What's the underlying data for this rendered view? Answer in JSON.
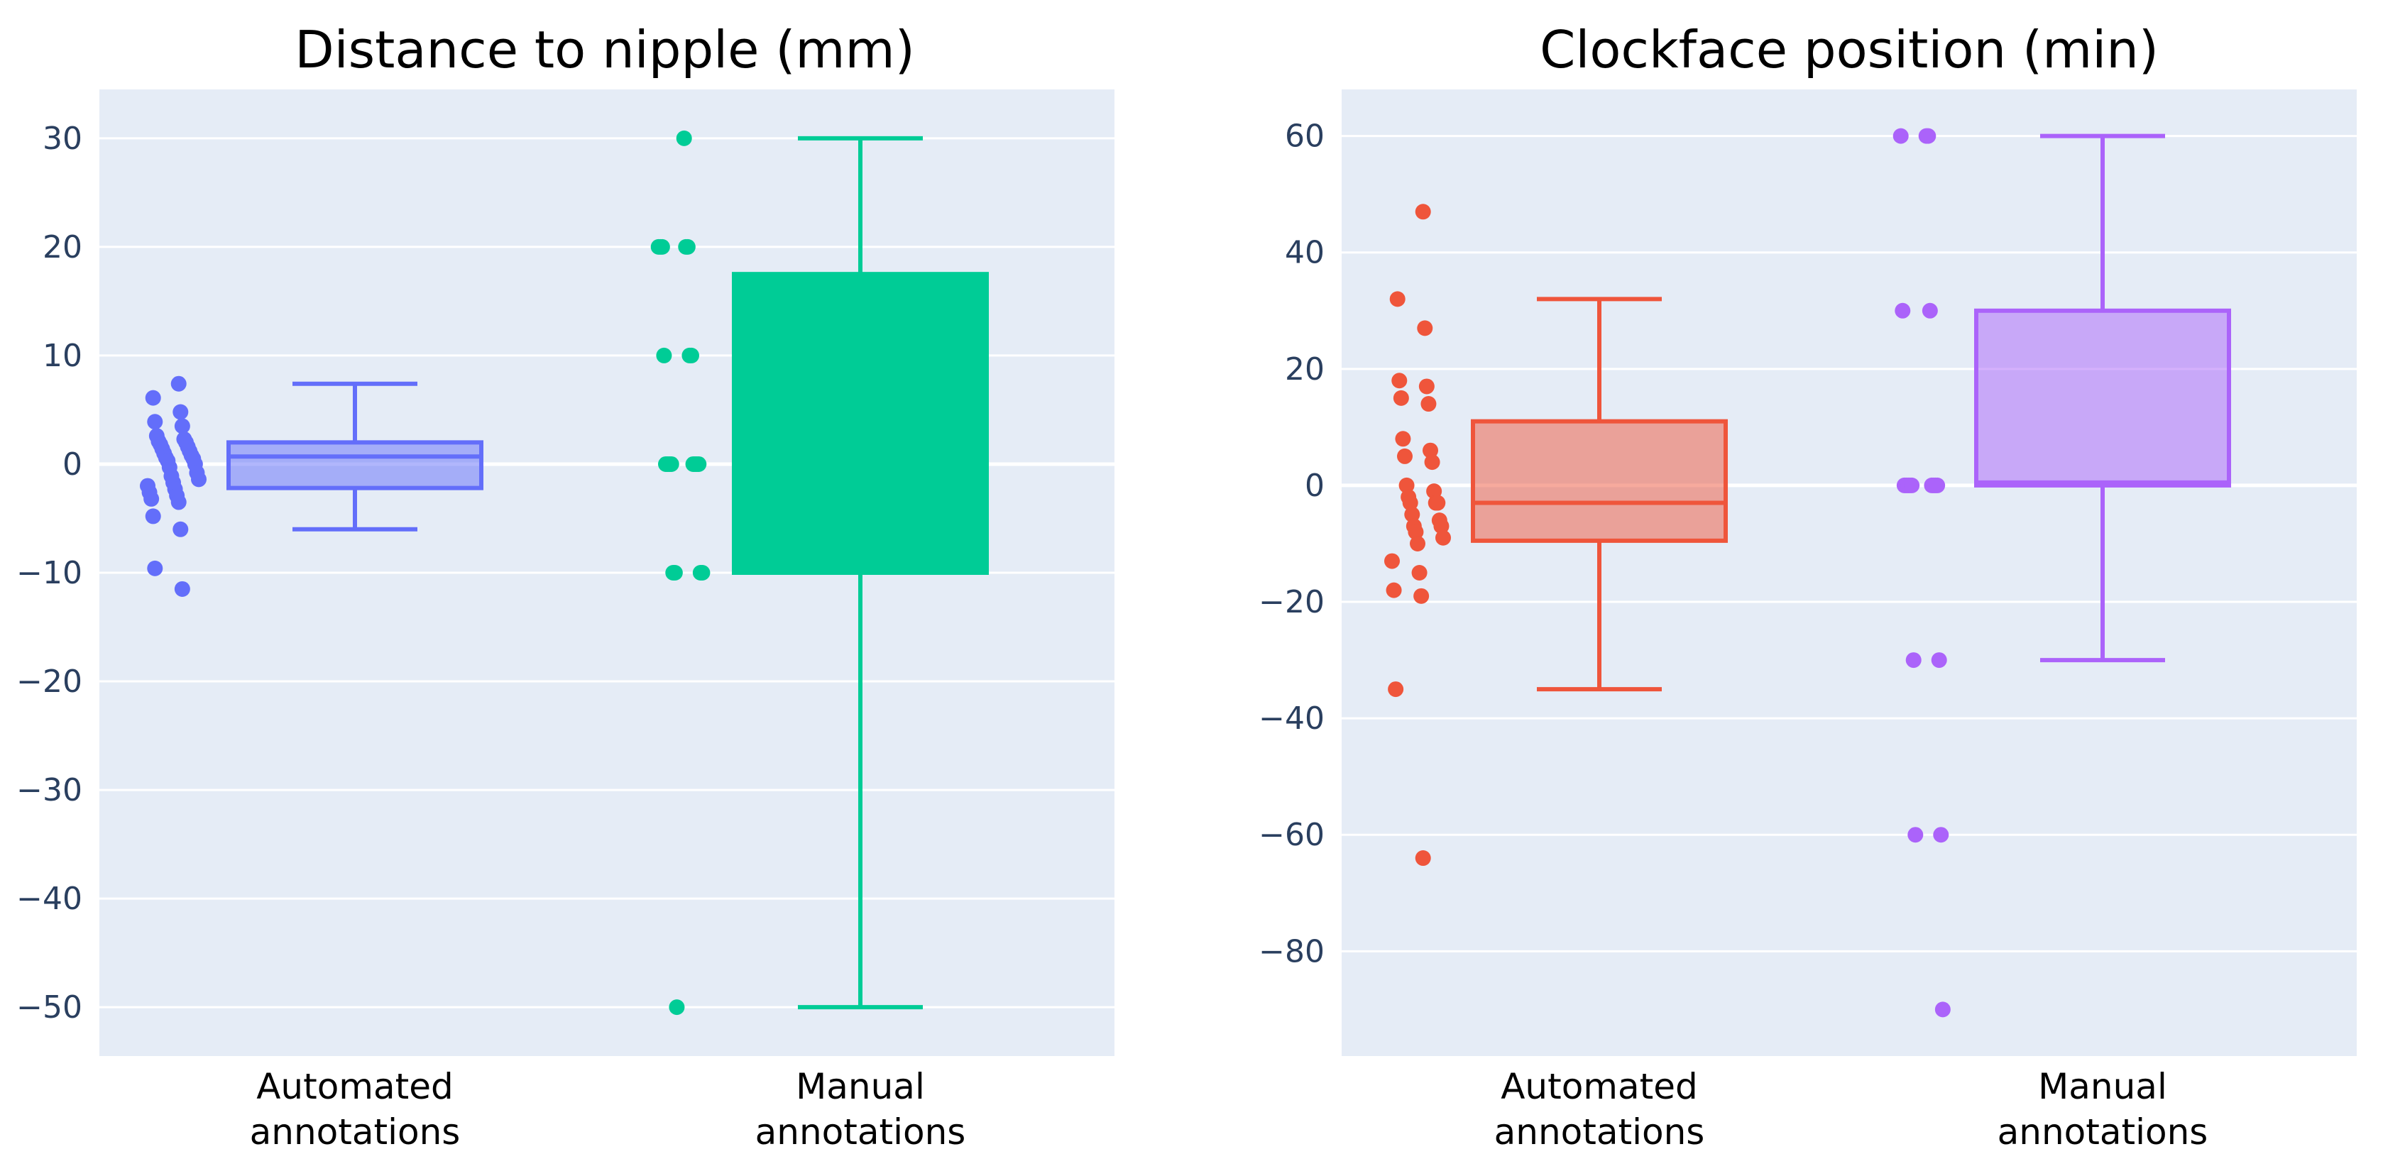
{
  "chart_data": [
    {
      "type": "box",
      "title": "Distance to nipple (mm)",
      "ylim": [
        -54.5,
        34.5
      ],
      "yticks": [
        30,
        20,
        10,
        0,
        -10,
        -20,
        -30,
        -40,
        -50
      ],
      "ytick_labels": [
        "30",
        "20",
        "10",
        "0",
        "−10",
        "−20",
        "−30",
        "−40",
        "−50"
      ],
      "grid": true,
      "categories": [
        {
          "line1": "Automated",
          "line2": "annotations"
        },
        {
          "line1": "Manual",
          "line2": "annotations"
        }
      ],
      "series": [
        {
          "color": "#636efa",
          "fill": "rgba(99,110,250,0.5)",
          "box": {
            "lower_fence": -6,
            "q1": -2.2,
            "median": 0.7,
            "q3": 2,
            "upper_fence": 7.4
          },
          "points": [
            7.4,
            6.1,
            4.8,
            3.9,
            3.5,
            2.6,
            2.3,
            2.1,
            2.0,
            1.8,
            1.6,
            1.4,
            1.2,
            1.0,
            0.8,
            0.6,
            0.5,
            0.3,
            0.0,
            -0.3,
            -0.8,
            -1.1,
            -1.4,
            -1.7,
            -2.0,
            -2.3,
            -2.6,
            -2.9,
            -3.2,
            -3.5,
            -4.8,
            -6.0,
            -9.6,
            -11.5
          ]
        },
        {
          "color": "#00cc96",
          "fill": "rgba(0,204,150,1)",
          "box": {
            "lower_fence": -50,
            "q1": -10,
            "median": 0,
            "q3": 17.5,
            "upper_fence": 30
          },
          "points": [
            30,
            20,
            20,
            20,
            20,
            20,
            10,
            10,
            10,
            0,
            0,
            0,
            0,
            0,
            0,
            0,
            0,
            -10,
            -10,
            -10,
            -10,
            -50
          ]
        }
      ]
    },
    {
      "type": "box",
      "title": "Clockface position (min)",
      "ylim": [
        -98,
        68
      ],
      "yticks": [
        60,
        40,
        20,
        0,
        -20,
        -40,
        -60,
        -80
      ],
      "ytick_labels": [
        "60",
        "40",
        "20",
        "0",
        "−20",
        "−40",
        "−60",
        "−80"
      ],
      "grid": true,
      "categories": [
        {
          "line1": "Automated",
          "line2": "annotations"
        },
        {
          "line1": "Manual",
          "line2": "annotations"
        }
      ],
      "series": [
        {
          "color": "#ef553b",
          "fill": "rgba(239,85,59,0.5)",
          "box": {
            "lower_fence": -35,
            "q1": -9.5,
            "median": -3,
            "q3": 11,
            "upper_fence": 32
          },
          "points": [
            47,
            32,
            27,
            18,
            17,
            15,
            14,
            8,
            6,
            5,
            4,
            0,
            -1,
            -2,
            -3,
            -3,
            -3,
            -5,
            -6,
            -7,
            -7,
            -8,
            -9,
            -10,
            -13,
            -15,
            -18,
            -19,
            -35,
            -64
          ]
        },
        {
          "color": "#ab63fa",
          "fill": "rgba(171,99,250,0.5)",
          "box": {
            "lower_fence": -30,
            "q1": 0,
            "median": 0.5,
            "q3": 30,
            "upper_fence": 60
          },
          "points": [
            60,
            60,
            60,
            30,
            30,
            0,
            0,
            0,
            0,
            0,
            0,
            0,
            0,
            0,
            -30,
            -30,
            -60,
            -60,
            -90
          ]
        }
      ]
    }
  ]
}
